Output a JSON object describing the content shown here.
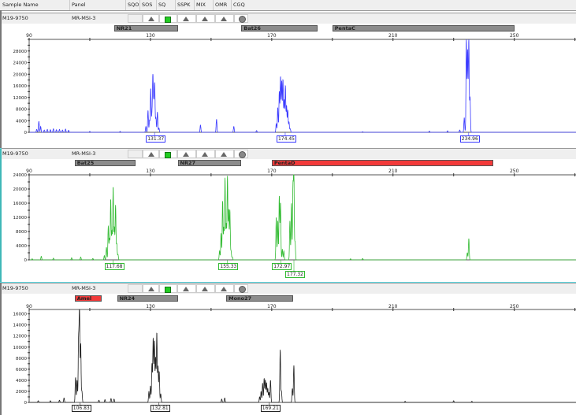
{
  "columns": [
    "Sample Name",
    "Panel",
    "SQO",
    "SOS",
    "SQ",
    "SSPK",
    "MIX",
    "OMR",
    "CGQ"
  ],
  "quality_icons": [
    {
      "column": "SQO",
      "icon": "empty"
    },
    {
      "column": "SOS",
      "icon": "gray-triangle-icon"
    },
    {
      "column": "SQ",
      "icon": "green-square-icon"
    },
    {
      "column": "SSPK",
      "icon": "gray-triangle-icon"
    },
    {
      "column": "MIX",
      "icon": "gray-triangle-icon"
    },
    {
      "column": "OMR",
      "icon": "gray-triangle-icon"
    },
    {
      "column": "CGQ",
      "icon": "gray-circle-icon"
    }
  ],
  "colors": {
    "bin_gray": "#8c8c8c",
    "bin_red": "#f23a3a",
    "divider": "#5fd7e0"
  },
  "chart_data": [
    {
      "type": "line",
      "dye_color": "#3a3aff",
      "sample_name": "M19-9750",
      "panel": "MR-MSI-3",
      "x_ticks": [
        90,
        130,
        170,
        210,
        250
      ],
      "xlim": [
        90,
        270
      ],
      "y_ticks": [
        0,
        4000,
        8000,
        12000,
        16000,
        20000,
        24000,
        28000
      ],
      "ylim": [
        0,
        32000
      ],
      "bins": [
        {
          "name": "NR21",
          "range": [
            118,
            139
          ],
          "color": "#8c8c8c"
        },
        {
          "name": "Bat26",
          "range": [
            160,
            185
          ],
          "color": "#8c8c8c"
        },
        {
          "name": "PentaC",
          "range": [
            190,
            250
          ],
          "color": "#8c8c8c"
        }
      ],
      "peak_labels": [
        {
          "size": 131.37,
          "text": "131.37"
        },
        {
          "size": 174.45,
          "text": "174.45"
        },
        {
          "size": 234.96,
          "text": "234.96"
        }
      ],
      "peaks": [
        [
          92.5,
          1000
        ],
        [
          93.2,
          3800
        ],
        [
          93.8,
          2000
        ],
        [
          95,
          800
        ],
        [
          96,
          1000
        ],
        [
          97,
          900
        ],
        [
          98,
          1200
        ],
        [
          99,
          900
        ],
        [
          100,
          1000
        ],
        [
          101,
          800
        ],
        [
          102,
          1100
        ],
        [
          103,
          700
        ],
        [
          110,
          300
        ],
        [
          120,
          300
        ],
        [
          128.5,
          2000
        ],
        [
          129.2,
          7500
        ],
        [
          129.7,
          4000
        ],
        [
          130.1,
          15000
        ],
        [
          130.5,
          6000
        ],
        [
          130.8,
          19000
        ],
        [
          131.1,
          9000
        ],
        [
          131.4,
          16500
        ],
        [
          131.8,
          5000
        ],
        [
          132.3,
          7000
        ],
        [
          132.8,
          1500
        ],
        [
          146.5,
          2500
        ],
        [
          151.8,
          4500
        ],
        [
          157.5,
          2000
        ],
        [
          165,
          600
        ],
        [
          171.5,
          3000
        ],
        [
          172,
          8500
        ],
        [
          172.5,
          14000
        ],
        [
          172.9,
          19000
        ],
        [
          173.3,
          17500
        ],
        [
          173.7,
          18000
        ],
        [
          174.1,
          11000
        ],
        [
          174.5,
          16000
        ],
        [
          174.9,
          9000
        ],
        [
          175.3,
          7500
        ],
        [
          175.7,
          3500
        ],
        [
          176.1,
          1200
        ],
        [
          200,
          200
        ],
        [
          222,
          400
        ],
        [
          228,
          500
        ],
        [
          232,
          800
        ],
        [
          233.5,
          5000
        ],
        [
          234.2,
          32000
        ],
        [
          234.6,
          28000
        ],
        [
          235,
          32000
        ],
        [
          235.4,
          12000
        ]
      ]
    },
    {
      "type": "line",
      "dye_color": "#33bb33",
      "sample_name": "M19-9750",
      "panel": "MR-MSI-3",
      "x_ticks": [
        90,
        130,
        170,
        210,
        250
      ],
      "xlim": [
        90,
        270
      ],
      "y_ticks": [
        0,
        4000,
        8000,
        12000,
        16000,
        20000,
        24000
      ],
      "ylim": [
        0,
        24000
      ],
      "bins": [
        {
          "name": "Bat25",
          "range": [
            105,
            125
          ],
          "color": "#8c8c8c"
        },
        {
          "name": "NR27",
          "range": [
            139,
            160
          ],
          "color": "#8c8c8c"
        },
        {
          "name": "PentaD",
          "range": [
            170,
            243
          ],
          "color": "#f23a3a"
        }
      ],
      "peak_labels": [
        {
          "size": 117.68,
          "text": "117.68"
        },
        {
          "size": 155.33,
          "text": "155.33"
        },
        {
          "size": 172.97,
          "text": "172.97"
        },
        {
          "size": 177.32,
          "text": "177.32"
        }
      ],
      "peaks": [
        [
          91,
          300
        ],
        [
          94,
          1000
        ],
        [
          98,
          500
        ],
        [
          104,
          600
        ],
        [
          107,
          800
        ],
        [
          111,
          400
        ],
        [
          114.8,
          1200
        ],
        [
          115.5,
          3500
        ],
        [
          116.1,
          9500
        ],
        [
          116.5,
          6000
        ],
        [
          116.9,
          17000
        ],
        [
          117.3,
          8000
        ],
        [
          117.7,
          20500
        ],
        [
          118.1,
          9000
        ],
        [
          118.5,
          15500
        ],
        [
          118.9,
          4500
        ],
        [
          119.3,
          1500
        ],
        [
          152.8,
          2500
        ],
        [
          153.3,
          7500
        ],
        [
          153.8,
          16500
        ],
        [
          154.2,
          9000
        ],
        [
          154.6,
          23000
        ],
        [
          155,
          10000
        ],
        [
          155.4,
          23500
        ],
        [
          155.8,
          14000
        ],
        [
          156.2,
          14000
        ],
        [
          156.6,
          2500
        ],
        [
          157,
          800
        ],
        [
          171.5,
          12000
        ],
        [
          172,
          11000
        ],
        [
          172.5,
          18000
        ],
        [
          172.9,
          16000
        ],
        [
          173.5,
          3000
        ],
        [
          174,
          2500
        ],
        [
          176,
          11000
        ],
        [
          176.5,
          16000
        ],
        [
          177,
          20000
        ],
        [
          177.3,
          24000
        ],
        [
          177.7,
          5000
        ],
        [
          196,
          300
        ],
        [
          200,
          400
        ],
        [
          234.5,
          2000
        ],
        [
          235,
          6000
        ]
      ]
    },
    {
      "type": "line",
      "dye_color": "#222222",
      "sample_name": "M19-9750",
      "panel": "MR-MSI-3",
      "x_ticks": [
        90,
        130,
        170,
        210,
        250
      ],
      "xlim": [
        90,
        270
      ],
      "y_ticks": [
        0,
        2000,
        4000,
        6000,
        8000,
        10000,
        12000,
        14000,
        16000
      ],
      "ylim": [
        0,
        16800
      ],
      "bins": [
        {
          "name": "Amel",
          "range": [
            105,
            114
          ],
          "color": "#f23a3a"
        },
        {
          "name": "NR24",
          "range": [
            119,
            139
          ],
          "color": "#8c8c8c"
        },
        {
          "name": "Mono27",
          "range": [
            155,
            177
          ],
          "color": "#8c8c8c"
        }
      ],
      "peak_labels": [
        {
          "size": 106.83,
          "text": "106.83"
        },
        {
          "size": 132.81,
          "text": "132.81"
        },
        {
          "size": 169.21,
          "text": "169.21"
        }
      ],
      "peaks": [
        [
          93,
          300
        ],
        [
          97,
          300
        ],
        [
          100,
          400
        ],
        [
          101.5,
          800
        ],
        [
          105.3,
          4500
        ],
        [
          105.8,
          4000
        ],
        [
          106.3,
          11000
        ],
        [
          106.6,
          16800
        ],
        [
          107,
          10500
        ],
        [
          107.4,
          2000
        ],
        [
          113,
          400
        ],
        [
          115,
          500
        ],
        [
          117,
          700
        ],
        [
          118,
          600
        ],
        [
          129.5,
          2000
        ],
        [
          130,
          3000
        ],
        [
          130.5,
          7000
        ],
        [
          130.9,
          11500
        ],
        [
          131.3,
          11000
        ],
        [
          131.7,
          8000
        ],
        [
          132.1,
          12500
        ],
        [
          132.5,
          6500
        ],
        [
          132.9,
          5500
        ],
        [
          133.4,
          1500
        ],
        [
          153.5,
          600
        ],
        [
          154.5,
          800
        ],
        [
          166,
          1000
        ],
        [
          166.5,
          2000
        ],
        [
          167,
          3500
        ],
        [
          167.5,
          4300
        ],
        [
          167.9,
          4000
        ],
        [
          168.3,
          3500
        ],
        [
          168.7,
          2500
        ],
        [
          169.1,
          1800
        ],
        [
          169.6,
          4000
        ],
        [
          172.8,
          9500
        ],
        [
          173.2,
          2000
        ],
        [
          176.8,
          2500
        ],
        [
          177.3,
          6700
        ],
        [
          214,
          200
        ],
        [
          230,
          300
        ],
        [
          236,
          200
        ]
      ]
    }
  ]
}
